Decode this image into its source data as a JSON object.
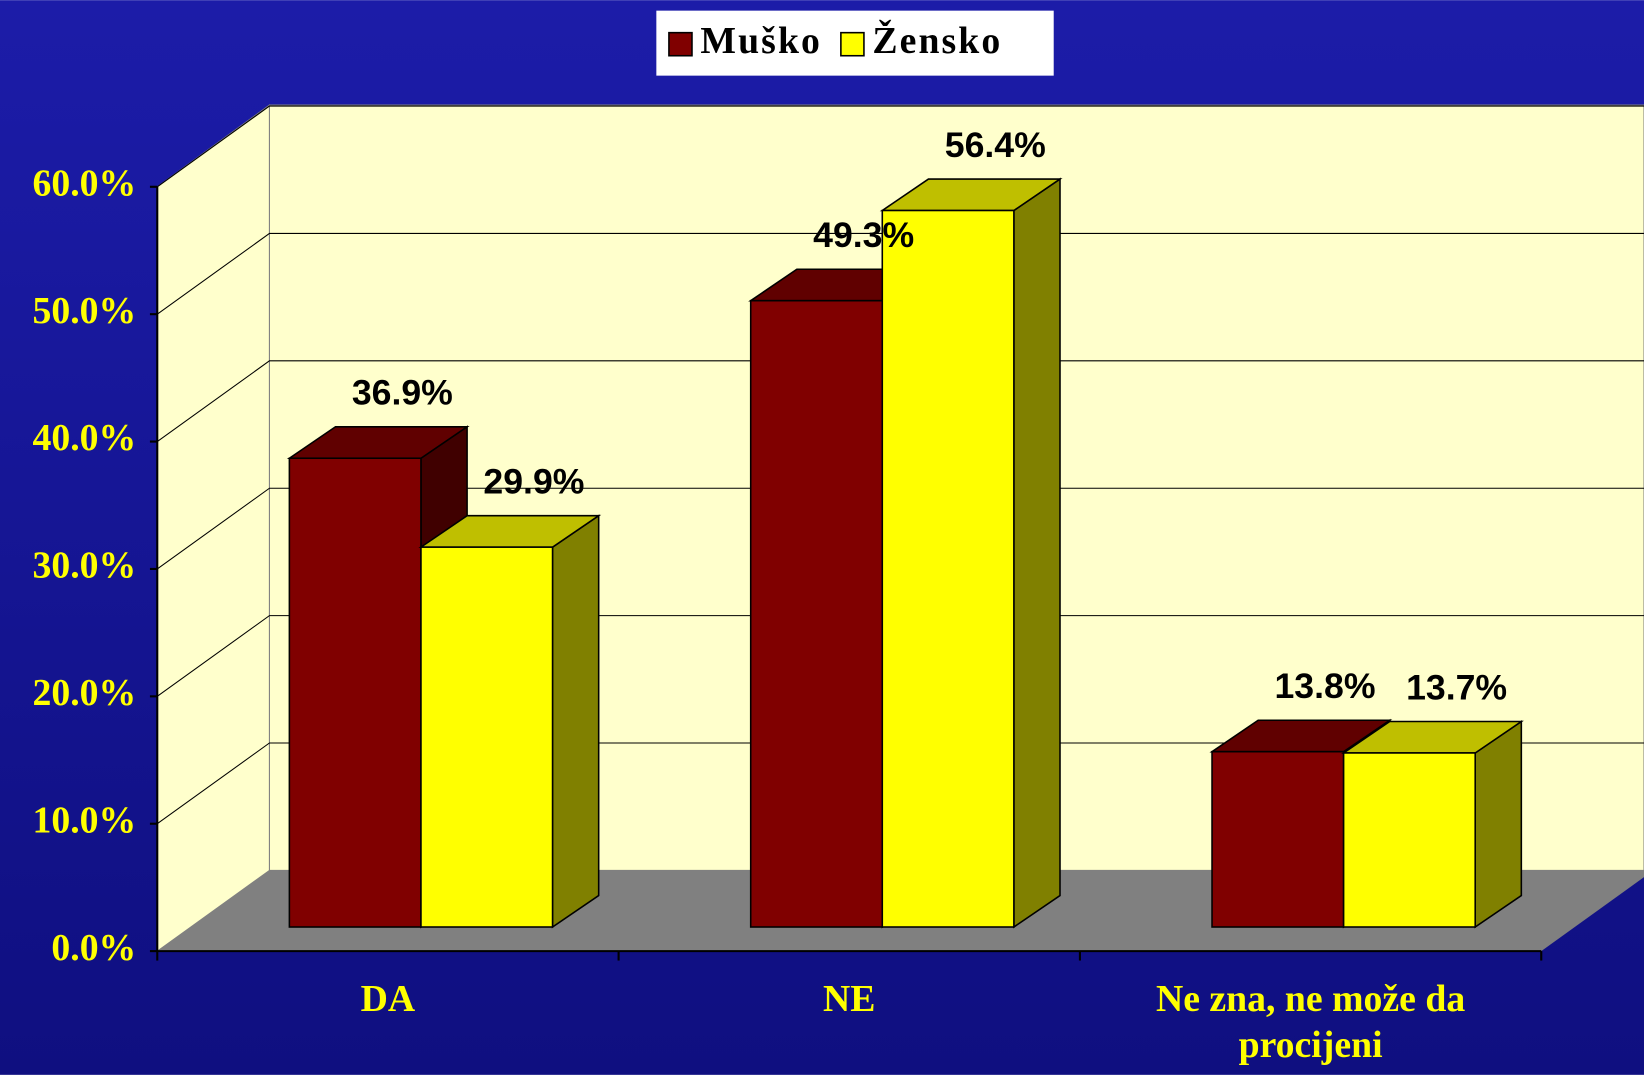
{
  "chart_data": {
    "type": "bar3d",
    "categories": [
      "DA",
      "NE",
      "Ne zna, ne može da procijeni"
    ],
    "series": [
      {
        "name": "Muško",
        "color": "#800000",
        "values": [
          36.9,
          49.3,
          13.8
        ],
        "value_labels": [
          "36.9%",
          "49.3%",
          "13.8%"
        ]
      },
      {
        "name": "Žensko",
        "color": "#ffff00",
        "values": [
          29.9,
          56.4,
          13.7
        ],
        "value_labels": [
          "29.9%",
          "56.4%",
          "13.7%"
        ]
      }
    ],
    "ylim": [
      0,
      60
    ],
    "yticks": [
      {
        "value": 0,
        "label": "0.0%"
      },
      {
        "value": 10,
        "label": "10.0%"
      },
      {
        "value": 20,
        "label": "20.0%"
      },
      {
        "value": 30,
        "label": "30.0%"
      },
      {
        "value": 40,
        "label": "40.0%"
      },
      {
        "value": 50,
        "label": "50.0%"
      },
      {
        "value": 60,
        "label": "60.0%"
      }
    ],
    "grid": true,
    "legend": "top"
  }
}
